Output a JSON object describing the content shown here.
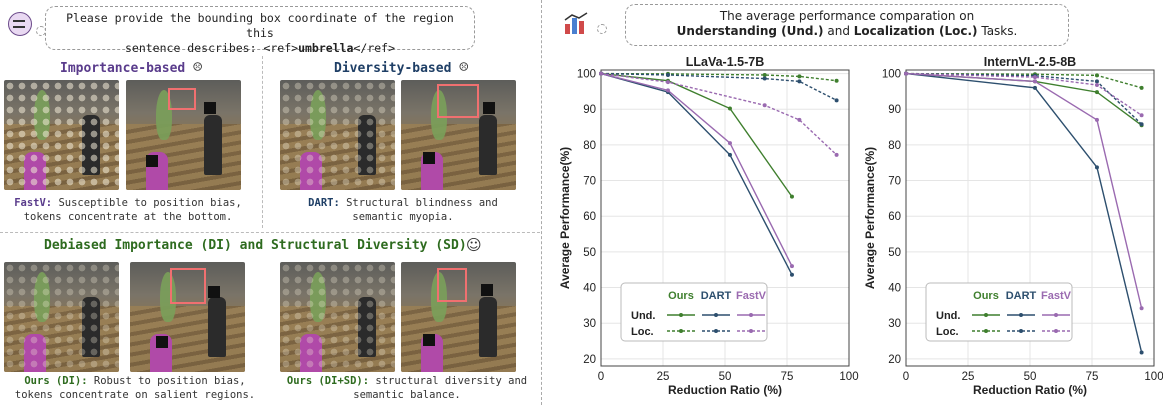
{
  "left": {
    "question": {
      "text_prefix": "Please provide the bounding box coordinate of the region this",
      "text_line2_prefix": "sentence describes: <ref>",
      "text_bold": "umbrella",
      "text_suffix": "</ref>"
    },
    "importance_based": {
      "title": "Importance-based",
      "emoji": "☹",
      "caption_bold": "FastV:",
      "caption_rest": " Susceptible to position bias, tokens concentrate at the bottom."
    },
    "diversity_based": {
      "title": "Diversity-based",
      "emoji": "☹",
      "caption_bold": "DART:",
      "caption_rest": " Structural blindness and semantic myopia."
    },
    "debiased": {
      "title": "Debiased Importance (DI) and Structural Diversity (SD)",
      "emoji": "☺",
      "caption_di_bold": "Ours (DI):",
      "caption_di_rest": " Robust to position bias, tokens concentrate on salient regions.",
      "caption_sd_bold": "Ours (DI+SD):",
      "caption_sd_rest": " structural diversity and semantic balance."
    }
  },
  "right": {
    "header_line1": "The average performance comparation on",
    "header_line2_bold_a": "Understanding (Und.)",
    "header_line2_mid": " and ",
    "header_line2_bold_b": "Localization (Loc.)",
    "header_line2_suffix": " Tasks."
  },
  "colors": {
    "ours": "#3f7f2e",
    "dart": "#2d4f6e",
    "fastv": "#9a6ab0",
    "ours_loc": "#3f7f2e",
    "dart_loc": "#2d4f6e",
    "fastv_loc": "#9a6ab0"
  },
  "legend": {
    "ours": "Ours",
    "dart": "DART",
    "fastv": "FastV",
    "und": "Und.",
    "loc": "Loc."
  },
  "chart_data": [
    {
      "type": "line",
      "title": "LLaVa-1.5-7B",
      "xlabel": "Reduction Ratio  (%)",
      "ylabel": "Average Performance(%)",
      "xlim": [
        0,
        100
      ],
      "ylim": [
        18,
        101
      ],
      "xticks": [
        0,
        25,
        50,
        75,
        100
      ],
      "yticks": [
        20,
        30,
        40,
        50,
        60,
        70,
        80,
        90,
        100
      ],
      "grid": true,
      "legend_position": "bottom-left",
      "series": [
        {
          "name": "Ours",
          "task": "Und.",
          "style": "solid",
          "x": [
            0,
            27,
            52,
            77
          ],
          "y": [
            100,
            98,
            90.2,
            65.5
          ]
        },
        {
          "name": "DART",
          "task": "Und.",
          "style": "solid",
          "x": [
            0,
            27,
            52,
            77
          ],
          "y": [
            100,
            94.8,
            77.2,
            43.6
          ]
        },
        {
          "name": "FastV",
          "task": "Und.",
          "style": "solid",
          "x": [
            0,
            27,
            52,
            77
          ],
          "y": [
            100,
            95.3,
            80.5,
            46
          ]
        },
        {
          "name": "Ours",
          "task": "Loc.",
          "style": "dotted",
          "x": [
            0,
            27,
            66,
            80,
            95
          ],
          "y": [
            100,
            99.9,
            99.6,
            99.2,
            98
          ]
        },
        {
          "name": "DART",
          "task": "Loc.",
          "style": "dotted",
          "x": [
            0,
            27,
            66,
            80,
            95
          ],
          "y": [
            100,
            99.6,
            98.6,
            97.8,
            92.5
          ]
        },
        {
          "name": "FastV",
          "task": "Loc.",
          "style": "dotted",
          "x": [
            0,
            27,
            66,
            80,
            95
          ],
          "y": [
            100,
            97.6,
            91.1,
            87,
            77.2
          ]
        }
      ]
    },
    {
      "type": "line",
      "title": "InternVL-2.5-8B",
      "xlabel": "Reduction Ratio  (%)",
      "ylabel": "Average Performance(%)",
      "xlim": [
        0,
        100
      ],
      "ylim": [
        18,
        101
      ],
      "xticks": [
        0,
        25,
        50,
        75,
        100
      ],
      "yticks": [
        20,
        30,
        40,
        50,
        60,
        70,
        80,
        90,
        100
      ],
      "grid": true,
      "legend_position": "bottom-left",
      "series": [
        {
          "name": "Ours",
          "task": "Und.",
          "style": "solid",
          "x": [
            0,
            52,
            77,
            95
          ],
          "y": [
            100,
            97.8,
            94.8,
            85.5
          ]
        },
        {
          "name": "DART",
          "task": "Und.",
          "style": "solid",
          "x": [
            0,
            52,
            77,
            95
          ],
          "y": [
            100,
            96,
            73.7,
            21.8
          ]
        },
        {
          "name": "FastV",
          "task": "Und.",
          "style": "solid",
          "x": [
            0,
            52,
            77,
            95
          ],
          "y": [
            100,
            97.8,
            87,
            34.2
          ]
        },
        {
          "name": "Ours",
          "task": "Loc.",
          "style": "dotted",
          "x": [
            0,
            52,
            77,
            95
          ],
          "y": [
            100,
            99.8,
            99.5,
            96
          ]
        },
        {
          "name": "DART",
          "task": "Loc.",
          "style": "dotted",
          "x": [
            0,
            52,
            77,
            95
          ],
          "y": [
            100,
            99.4,
            97.8,
            85.8
          ]
        },
        {
          "name": "FastV",
          "task": "Loc.",
          "style": "dotted",
          "x": [
            0,
            52,
            77,
            95
          ],
          "y": [
            100,
            99,
            96.8,
            88.3
          ]
        }
      ]
    }
  ]
}
